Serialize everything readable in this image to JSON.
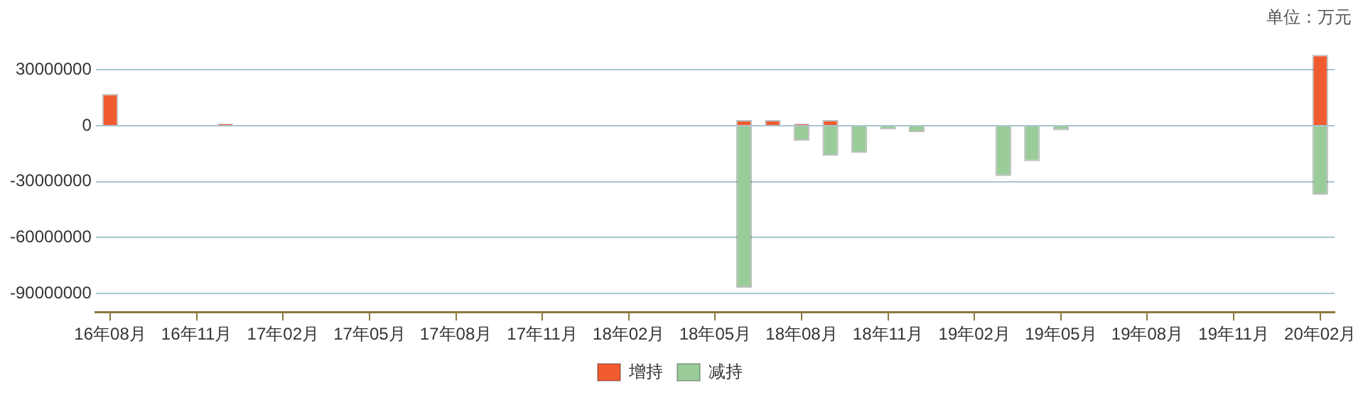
{
  "chart_data": {
    "type": "bar",
    "stacked": true,
    "categories": [
      "16年08月",
      null,
      null,
      "16年11月",
      null,
      null,
      "17年02月",
      null,
      null,
      "17年05月",
      null,
      null,
      "17年08月",
      null,
      null,
      "17年11月",
      null,
      null,
      "18年02月",
      null,
      null,
      "18年05月",
      null,
      null,
      "18年08月",
      null,
      null,
      "18年11月",
      null,
      null,
      "19年02月",
      null,
      null,
      "19年05月",
      null,
      null,
      "19年08月",
      null,
      null,
      "19年11月",
      null,
      null,
      "20年02月"
    ],
    "series": [
      {
        "name": "增持",
        "color": "#f05b30",
        "values": [
          17000000,
          null,
          null,
          null,
          1000000,
          null,
          null,
          null,
          null,
          null,
          null,
          null,
          null,
          null,
          null,
          null,
          null,
          null,
          null,
          null,
          null,
          null,
          3000000,
          3000000,
          1000000,
          3000000,
          null,
          null,
          null,
          null,
          null,
          null,
          null,
          null,
          null,
          null,
          null,
          null,
          null,
          null,
          null,
          null,
          38000000
        ]
      },
      {
        "name": "减持",
        "color": "#99cc99",
        "values": [
          null,
          null,
          null,
          null,
          null,
          null,
          null,
          null,
          null,
          null,
          null,
          null,
          null,
          null,
          null,
          null,
          null,
          null,
          null,
          null,
          null,
          null,
          -87000000,
          null,
          -8000000,
          -16000000,
          -14500000,
          -2000000,
          -3500000,
          null,
          null,
          -27000000,
          -19000000,
          -2500000,
          null,
          null,
          null,
          null,
          null,
          null,
          null,
          null,
          -37000000
        ]
      }
    ],
    "ylim": [
      -100000000,
      40000000
    ],
    "yticks": [
      -90000000,
      -60000000,
      -30000000,
      0,
      30000000
    ],
    "grid": "y",
    "legend": "bottom",
    "annotations": [
      "单位：万元"
    ]
  }
}
